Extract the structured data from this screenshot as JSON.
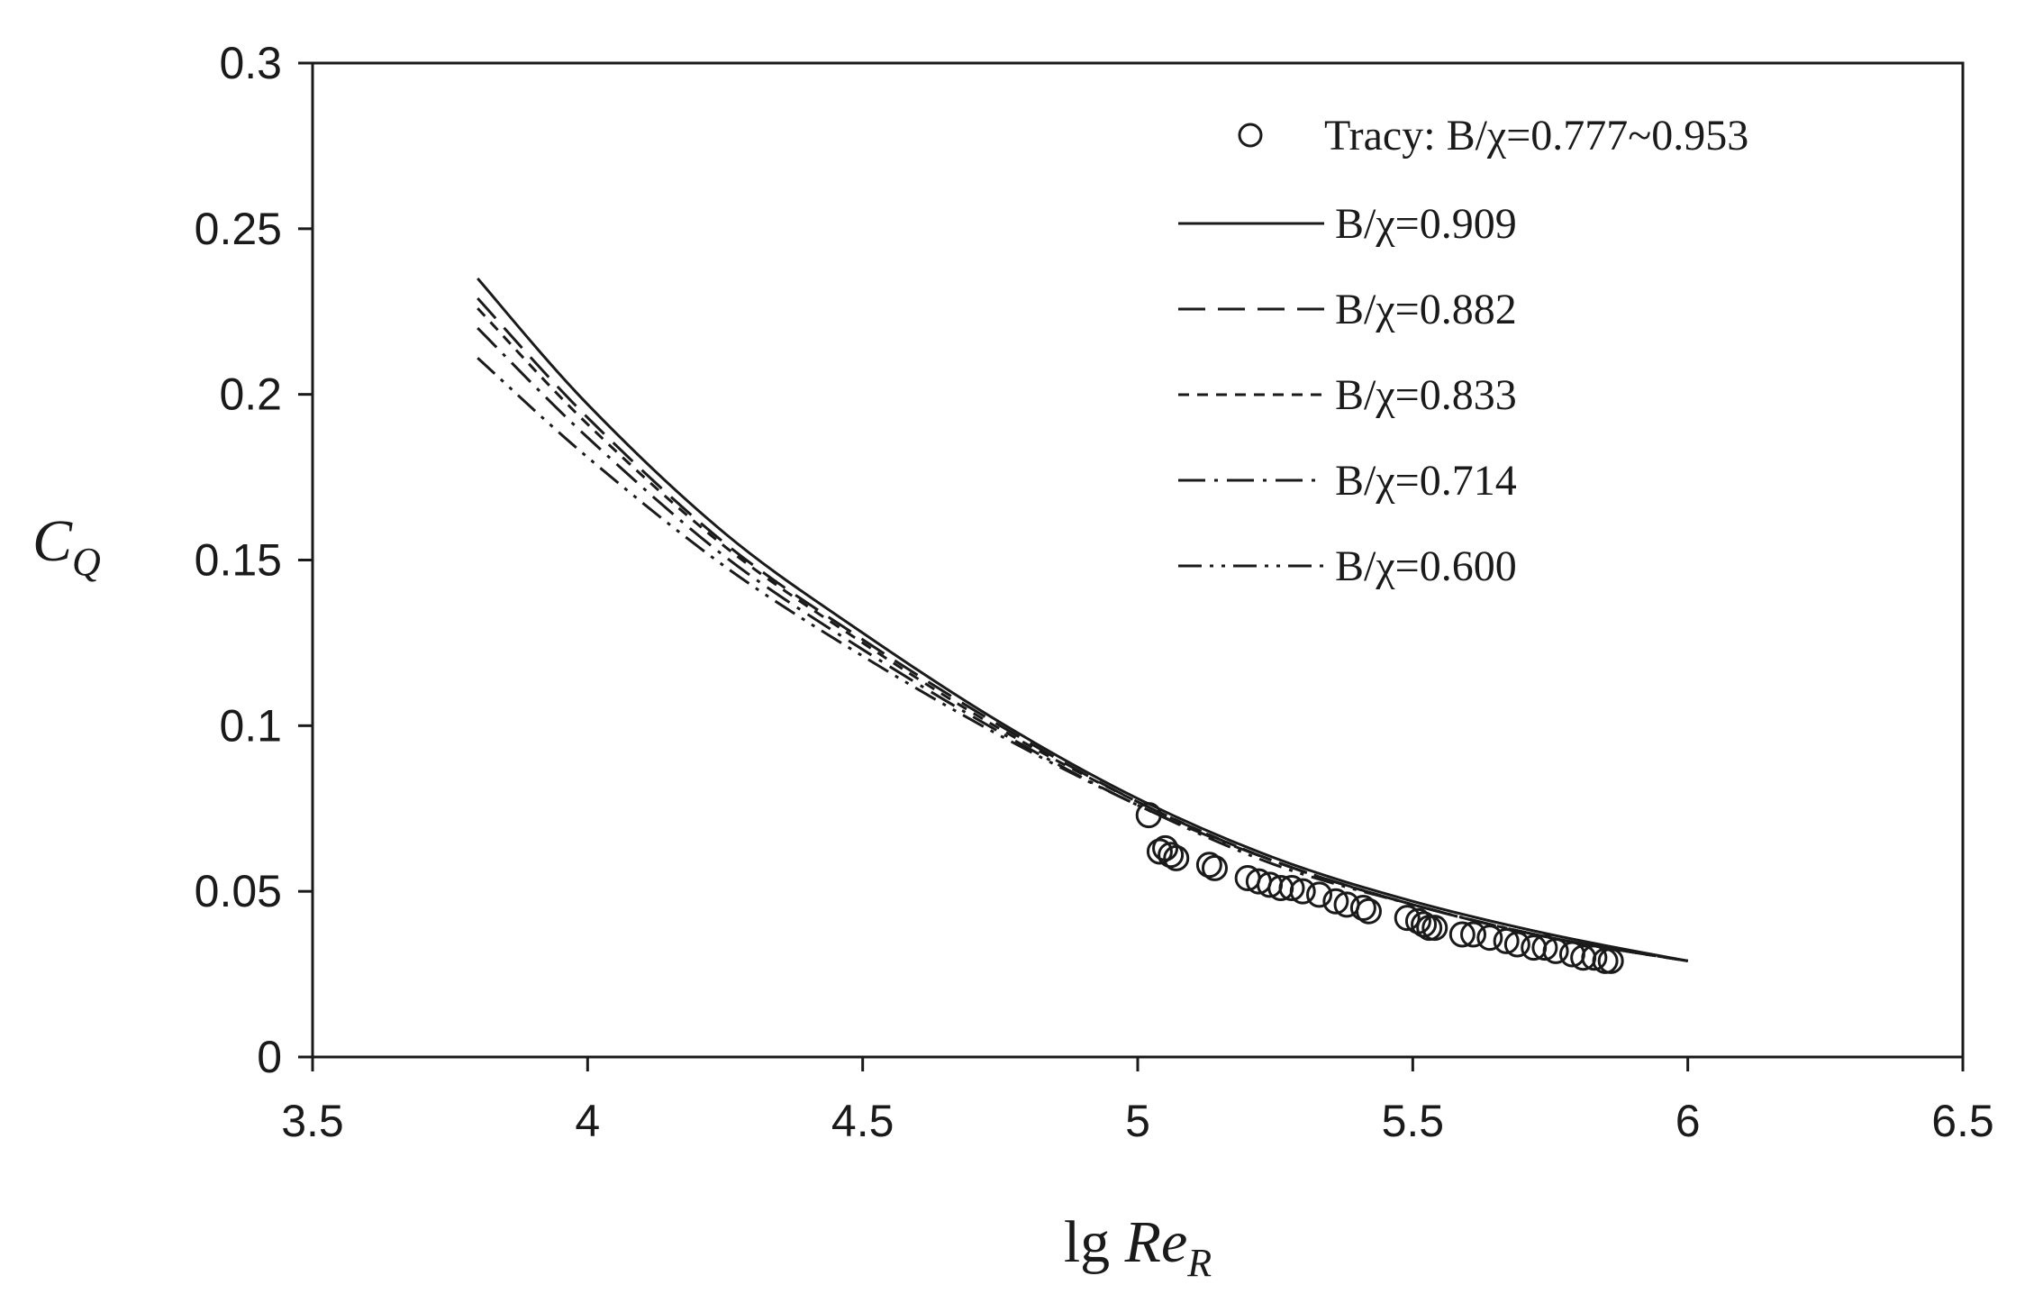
{
  "chart_data": {
    "type": "scatter",
    "title": "",
    "xlabel": {
      "main": "lg ",
      "var": "Re",
      "sub": "R"
    },
    "ylabel": {
      "var": "C",
      "sub": "Q"
    },
    "xlim": [
      3.5,
      6.5
    ],
    "ylim": [
      0,
      0.3
    ],
    "xticks": [
      "3.5",
      "4",
      "4.5",
      "5",
      "5.5",
      "6",
      "6.5"
    ],
    "yticks": [
      "0",
      "0.05",
      "0.1",
      "0.15",
      "0.2",
      "0.25",
      "0.3"
    ],
    "grid": false,
    "legend_position": "top-right",
    "series": [
      {
        "name": "Tracy: B/χ=0.777~0.953",
        "kind": "scatter",
        "marker": "open-circle",
        "points": [
          [
            5.02,
            0.073
          ],
          [
            5.04,
            0.062
          ],
          [
            5.05,
            0.063
          ],
          [
            5.06,
            0.061
          ],
          [
            5.07,
            0.06
          ],
          [
            5.13,
            0.058
          ],
          [
            5.14,
            0.057
          ],
          [
            5.2,
            0.054
          ],
          [
            5.22,
            0.053
          ],
          [
            5.24,
            0.052
          ],
          [
            5.26,
            0.051
          ],
          [
            5.28,
            0.051
          ],
          [
            5.3,
            0.05
          ],
          [
            5.33,
            0.049
          ],
          [
            5.36,
            0.047
          ],
          [
            5.38,
            0.046
          ],
          [
            5.41,
            0.045
          ],
          [
            5.42,
            0.044
          ],
          [
            5.49,
            0.042
          ],
          [
            5.51,
            0.041
          ],
          [
            5.52,
            0.04
          ],
          [
            5.53,
            0.039
          ],
          [
            5.54,
            0.039
          ],
          [
            5.59,
            0.037
          ],
          [
            5.61,
            0.037
          ],
          [
            5.64,
            0.036
          ],
          [
            5.67,
            0.035
          ],
          [
            5.69,
            0.034
          ],
          [
            5.72,
            0.033
          ],
          [
            5.74,
            0.033
          ],
          [
            5.76,
            0.032
          ],
          [
            5.79,
            0.031
          ],
          [
            5.81,
            0.03
          ],
          [
            5.83,
            0.03
          ],
          [
            5.85,
            0.029
          ],
          [
            5.86,
            0.029
          ]
        ]
      },
      {
        "name": "B/χ=0.909",
        "kind": "line",
        "dash": "solid",
        "points": [
          [
            3.8,
            0.235
          ],
          [
            4.0,
            0.197
          ],
          [
            4.25,
            0.158
          ],
          [
            4.5,
            0.128
          ],
          [
            4.75,
            0.101
          ],
          [
            5.0,
            0.078
          ],
          [
            5.25,
            0.06
          ],
          [
            5.5,
            0.047
          ],
          [
            5.75,
            0.037
          ],
          [
            6.0,
            0.029
          ]
        ]
      },
      {
        "name": "B/χ=0.882",
        "kind": "line",
        "dash": "dash",
        "points": [
          [
            3.8,
            0.229
          ],
          [
            4.0,
            0.193
          ],
          [
            4.25,
            0.155
          ],
          [
            4.5,
            0.126
          ],
          [
            4.75,
            0.1
          ],
          [
            5.0,
            0.077
          ],
          [
            5.25,
            0.059
          ],
          [
            5.5,
            0.046
          ],
          [
            5.75,
            0.036
          ],
          [
            6.0,
            0.029
          ]
        ]
      },
      {
        "name": "B/χ=0.833",
        "kind": "line",
        "dash": "short-dash",
        "points": [
          [
            3.8,
            0.226
          ],
          [
            4.0,
            0.191
          ],
          [
            4.25,
            0.154
          ],
          [
            4.5,
            0.125
          ],
          [
            4.75,
            0.099
          ],
          [
            5.0,
            0.077
          ],
          [
            5.25,
            0.059
          ],
          [
            5.5,
            0.046
          ],
          [
            5.75,
            0.036
          ],
          [
            6.0,
            0.029
          ]
        ]
      },
      {
        "name": "B/χ=0.714",
        "kind": "line",
        "dash": "dash-dot",
        "points": [
          [
            3.8,
            0.22
          ],
          [
            4.0,
            0.187
          ],
          [
            4.25,
            0.151
          ],
          [
            4.5,
            0.123
          ],
          [
            4.75,
            0.098
          ],
          [
            5.0,
            0.076
          ],
          [
            5.25,
            0.059
          ],
          [
            5.5,
            0.046
          ],
          [
            5.75,
            0.036
          ],
          [
            6.0,
            0.029
          ]
        ]
      },
      {
        "name": "B/χ=0.600",
        "kind": "line",
        "dash": "dash-dot-dot",
        "points": [
          [
            3.8,
            0.211
          ],
          [
            4.0,
            0.181
          ],
          [
            4.25,
            0.148
          ],
          [
            4.5,
            0.121
          ],
          [
            4.75,
            0.097
          ],
          [
            5.0,
            0.076
          ],
          [
            5.25,
            0.058
          ],
          [
            5.5,
            0.046
          ],
          [
            5.75,
            0.036
          ],
          [
            6.0,
            0.029
          ]
        ]
      }
    ]
  }
}
